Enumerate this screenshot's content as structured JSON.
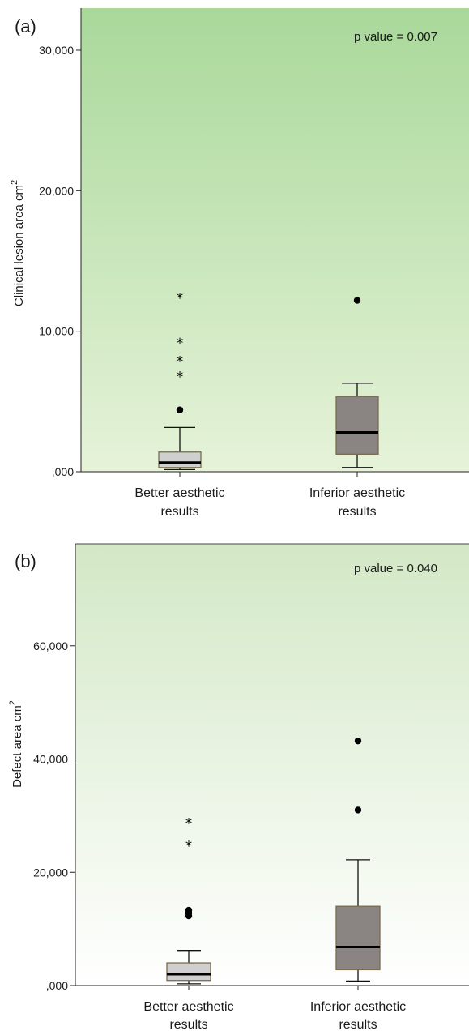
{
  "colors": {
    "panel_a_top": "#a9d89a",
    "panel_a_bottom": "#e6f3d9",
    "panel_b_top": "#d3e8c6",
    "panel_b_bottom": "#ffffff",
    "box_better": "#cfcfcf",
    "box_inferior": "#8a8583",
    "box_edge": "#7a6b4e"
  },
  "chart_data": [
    {
      "type": "box",
      "panel_label": "(a)",
      "title": "",
      "annotation": "p value = 0.007",
      "ylabel": "Clinical lesion area cm",
      "ylabel_superscript": "2",
      "ylim": [
        0,
        33000
      ],
      "yticks": [
        {
          "value": 0,
          "label": ",000"
        },
        {
          "value": 10000,
          "label": "10,000"
        },
        {
          "value": 20000,
          "label": "20,000"
        },
        {
          "value": 30000,
          "label": "30,000"
        }
      ],
      "categories": [
        {
          "line1": "Better aesthetic",
          "line2": "results"
        },
        {
          "line1": "Inferior aesthetic",
          "line2": "results"
        }
      ],
      "boxes": [
        {
          "min": 150,
          "q1": 300,
          "median": 650,
          "q3": 1400,
          "max": 3150,
          "outliers_circle": [
            4400
          ],
          "outliers_star": [
            6900,
            8000,
            9300,
            12500
          ]
        },
        {
          "min": 300,
          "q1": 1250,
          "median": 2800,
          "q3": 5350,
          "max": 6300,
          "outliers_circle": [
            12200
          ],
          "outliers_star": []
        }
      ]
    },
    {
      "type": "box",
      "panel_label": "(b)",
      "title": "",
      "annotation": "p value = 0.040",
      "ylabel": "Defect area cm",
      "ylabel_superscript": "2",
      "ylim": [
        0,
        78000
      ],
      "yticks": [
        {
          "value": 0,
          "label": ",000"
        },
        {
          "value": 20000,
          "label": "20,000"
        },
        {
          "value": 40000,
          "label": "40,000"
        },
        {
          "value": 60000,
          "label": "60,000"
        }
      ],
      "categories": [
        {
          "line1": "Better aesthetic",
          "line2": "results"
        },
        {
          "line1": "Inferior aesthetic",
          "line2": "results"
        }
      ],
      "boxes": [
        {
          "min": 300,
          "q1": 900,
          "median": 2000,
          "q3": 4000,
          "max": 6200,
          "outliers_circle": [
            12300,
            12800,
            13300
          ],
          "outliers_star": [
            25000,
            29000
          ]
        },
        {
          "min": 800,
          "q1": 2800,
          "median": 6800,
          "q3": 14000,
          "max": 22200,
          "outliers_circle": [
            31000,
            43200
          ],
          "outliers_star": []
        }
      ]
    }
  ]
}
